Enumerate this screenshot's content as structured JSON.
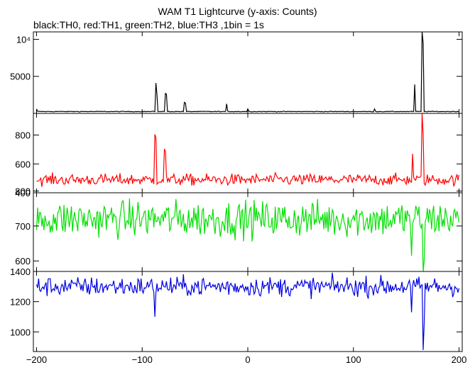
{
  "chart": {
    "title": "WAM T1 Lightcurve (y-axis: Counts)",
    "subtitle": "black:TH0, red:TH1, green:TH2, blue:TH3 ,1bin = 1s"
  },
  "chart_data": {
    "type": "line",
    "title": "WAM T1 Lightcurve (y-axis: Counts)",
    "subtitle": "black:TH0, red:TH1, green:TH2, blue:TH3 ,1bin = 1s",
    "xlim": [
      -203,
      203
    ],
    "xticks": [
      -200,
      -100,
      0,
      100,
      200
    ],
    "xtick_labels": [
      "−200",
      "−100",
      "0",
      "100",
      "200"
    ],
    "panels": [
      {
        "name": "TH0",
        "color": "#000000",
        "ylim": [
          0,
          11000
        ],
        "yticks": [
          5000,
          10000
        ],
        "ytick_labels": [
          "5000",
          "10⁴"
        ],
        "baseline": 250,
        "noise": 25,
        "spikes": [
          [
            -200,
            600
          ],
          [
            -87.5,
            4100
          ],
          [
            -86.5,
            2500
          ],
          [
            -78,
            2700
          ],
          [
            -77,
            2600
          ],
          [
            -60,
            1500
          ],
          [
            -59,
            1400
          ],
          [
            -20,
            1300
          ],
          [
            0,
            600
          ],
          [
            120,
            600
          ],
          [
            158,
            3900
          ],
          [
            165,
            11000
          ],
          [
            166,
            9500
          ]
        ]
      },
      {
        "name": "TH1",
        "color": "#ff0000",
        "ylim": [
          400,
          950
        ],
        "yticks": [
          400,
          600,
          800
        ],
        "ytick_labels": [
          "400",
          "600",
          "800"
        ],
        "baseline": 490,
        "noise": 20,
        "spikes": [
          [
            -88,
            805
          ],
          [
            -87,
            780
          ],
          [
            -79,
            700
          ],
          [
            -78,
            690
          ],
          [
            156,
            670
          ],
          [
            165,
            950
          ],
          [
            166,
            800
          ]
        ]
      },
      {
        "name": "TH2",
        "color": "#00e000",
        "ylim": [
          570,
          795
        ],
        "yticks": [
          600,
          700,
          800
        ],
        "ytick_labels": [
          "600",
          "700",
          "800"
        ],
        "baseline": 720,
        "noise": 26,
        "spikes": [
          [
            155,
            615
          ],
          [
            166,
            570
          ],
          [
            167,
            600
          ]
        ]
      },
      {
        "name": "TH3",
        "color": "#0000e0",
        "ylim": [
          870,
          1400
        ],
        "yticks": [
          1000,
          1200,
          1400
        ],
        "ytick_labels": [
          "1000",
          "1200",
          "1400"
        ],
        "baseline": 1300,
        "noise": 32,
        "spikes": [
          [
            -88,
            1100
          ],
          [
            155,
            1130
          ],
          [
            166,
            880
          ],
          [
            167,
            1050
          ]
        ]
      }
    ]
  }
}
